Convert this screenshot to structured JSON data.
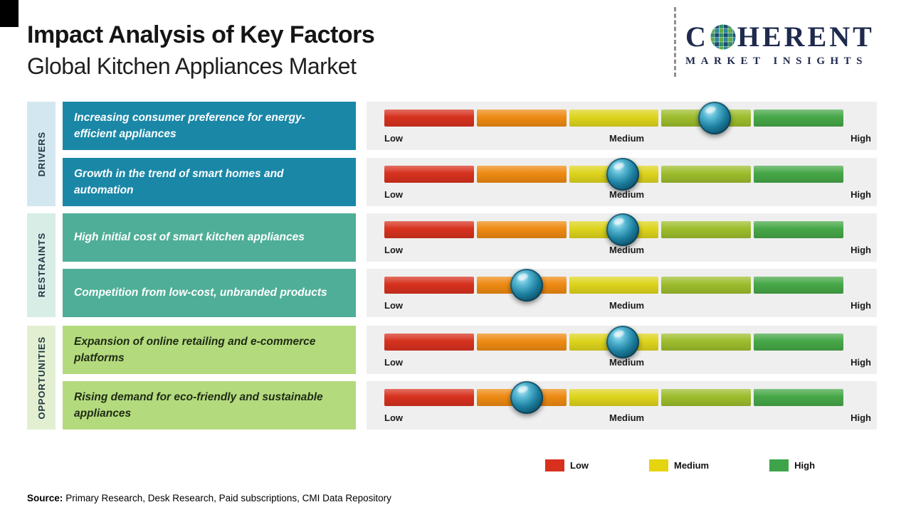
{
  "header": {
    "title": "Impact Analysis of Key Factors",
    "subtitle": "Global Kitchen Appliances Market"
  },
  "logo": {
    "name": "Coherent Market Insights",
    "line1_pre": "C",
    "line1_post": "HERENT",
    "line2": "MARKET INSIGHTS"
  },
  "scale": {
    "low": "Low",
    "medium": "Medium",
    "high": "High"
  },
  "bar_colors": [
    "#d7311e",
    "#ee8a12",
    "#ddd41c",
    "#9dbd2c",
    "#46a747"
  ],
  "groups": [
    {
      "label": "DRIVERS",
      "box_color": "#1a87a7",
      "strip_color": "#d3e7f0",
      "text_color": "#ffffff",
      "factors": [
        {
          "text": "Increasing consumer preference for energy-efficient appliances",
          "impact_pct": 72
        },
        {
          "text": "Growth in the trend of smart homes and automation",
          "impact_pct": 52
        }
      ]
    },
    {
      "label": "RESTRAINTS",
      "box_color": "#4fae97",
      "strip_color": "#d7ede6",
      "text_color": "#ffffff",
      "factors": [
        {
          "text": "High initial cost of smart kitchen appliances",
          "impact_pct": 52
        },
        {
          "text": "Competition from low-cost, unbranded products",
          "impact_pct": 31
        }
      ]
    },
    {
      "label": "OPPORTUNITIES",
      "box_color": "#b4da7e",
      "strip_color": "#e2f0d1",
      "text_color": "#1e2b13",
      "factors": [
        {
          "text": "Expansion of online retailing and e-commerce platforms",
          "impact_pct": 52
        },
        {
          "text": "Rising demand for eco-friendly and sustainable appliances",
          "impact_pct": 31
        }
      ]
    }
  ],
  "legend": [
    {
      "label": "Low",
      "color": "#d7311e"
    },
    {
      "label": "Medium",
      "color": "#e5d410"
    },
    {
      "label": "High",
      "color": "#3ea449"
    }
  ],
  "source": {
    "label": "Source:",
    "text": "Primary Research, Desk Research, Paid subscriptions, CMI Data Repository"
  },
  "chart_data": {
    "type": "scatter",
    "subtype": "impact-scale-markers",
    "title": "Impact Analysis of Key Factors",
    "subtitle": "Global Kitchen Appliances Market",
    "x_scale": {
      "labels": [
        "Low",
        "Medium",
        "High"
      ],
      "range_pct": [
        0,
        100
      ],
      "low_pct": 0,
      "medium_pct": 50,
      "high_pct": 100
    },
    "legend_entries": [
      "Low",
      "Medium",
      "High"
    ],
    "series": [
      {
        "group": "Drivers",
        "factor": "Increasing consumer preference for energy-efficient appliances",
        "impact_pct": 72,
        "impact_level": "Medium-High"
      },
      {
        "group": "Drivers",
        "factor": "Growth in the trend of smart homes and automation",
        "impact_pct": 52,
        "impact_level": "Medium"
      },
      {
        "group": "Restraints",
        "factor": "High initial cost of smart kitchen appliances",
        "impact_pct": 52,
        "impact_level": "Medium"
      },
      {
        "group": "Restraints",
        "factor": "Competition from low-cost, unbranded products",
        "impact_pct": 31,
        "impact_level": "Low-Medium"
      },
      {
        "group": "Opportunities",
        "factor": "Expansion of online retailing and e-commerce platforms",
        "impact_pct": 52,
        "impact_level": "Medium"
      },
      {
        "group": "Opportunities",
        "factor": "Rising demand for eco-friendly and sustainable appliances",
        "impact_pct": 31,
        "impact_level": "Low-Medium"
      }
    ]
  }
}
